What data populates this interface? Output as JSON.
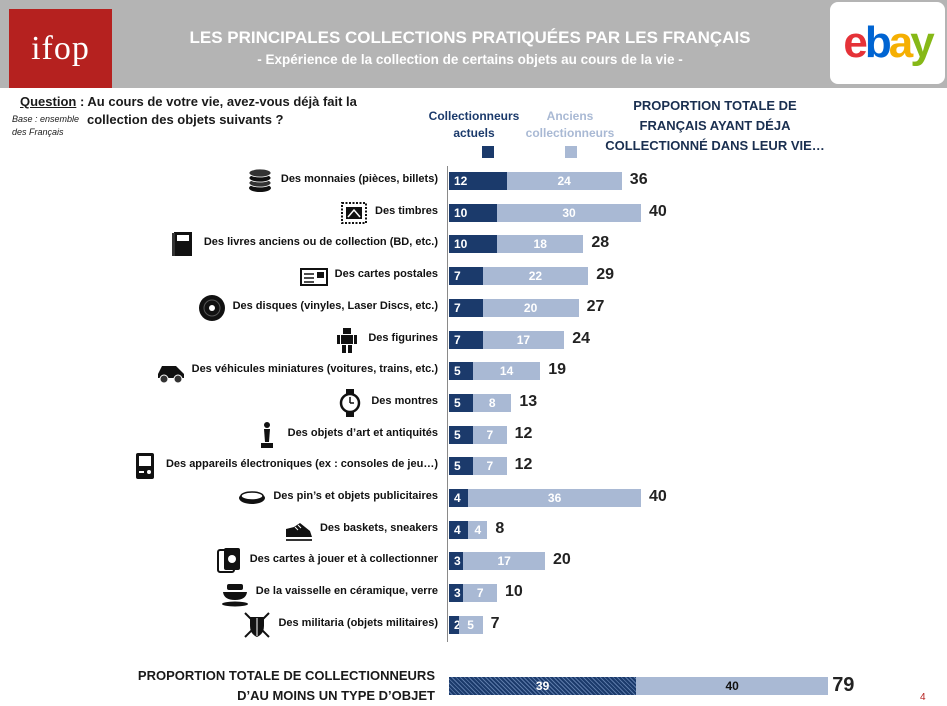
{
  "header": {
    "logo_text": "ifop",
    "title": "LES PRINCIPALES COLLECTIONS PRATIQUÉES PAR LES FRANÇAIS",
    "subtitle": "- Expérience de la collection de certains objets au cours de la vie -",
    "ebay": {
      "e": "e",
      "b": "b",
      "a": "a",
      "y": "y"
    },
    "colors": {
      "banner": "#b4b4b4",
      "ifop_red": "#b5211f"
    }
  },
  "question": {
    "label": "Question",
    "text_line1": " : Au cours de votre vie, avez-vous déjà fait la",
    "text_line2": "collection des objets suivants ?",
    "base": "Base : ensemble des Français"
  },
  "legend": {
    "current": "Collectionneurs actuels",
    "former": "Anciens collectionneurs",
    "total_heading": "PROPORTION TOTALE DE FRANÇAIS AYANT DÉJA COLLECTIONNÉ DANS LEUR VIE…"
  },
  "chart_data": {
    "type": "bar",
    "orientation": "horizontal",
    "stacked": true,
    "colors": {
      "current": "#1b3a6b",
      "former": "#a9b9d4"
    },
    "categories": [
      "Des monnaies (pièces, billets)",
      "Des timbres",
      "Des livres anciens ou de collection (BD, etc.)",
      "Des cartes postales",
      "Des disques (vinyles, Laser Discs, etc.)",
      "Des figurines",
      "Des véhicules miniatures (voitures, trains, etc.)",
      "Des montres",
      "Des objets d’art et antiquités",
      "Des appareils électroniques (ex : consoles de jeu…)",
      "Des pin’s et objets publicitaires",
      "Des baskets, sneakers",
      "Des cartes à jouer et à collectionner",
      "De la vaisselle en céramique, verre",
      "Des militaria (objets militaires)"
    ],
    "icons": [
      "coins-icon",
      "stamp-icon",
      "book-icon",
      "postcard-icon",
      "vinyl-disc-icon",
      "figurine-icon",
      "toy-car-icon",
      "watch-icon",
      "statue-icon",
      "game-console-icon",
      "pin-badge-icon",
      "sneaker-icon",
      "playing-cards-icon",
      "dishes-icon",
      "military-shield-icon"
    ],
    "series": [
      {
        "name": "Collectionneurs actuels",
        "values": [
          12,
          10,
          10,
          7,
          7,
          7,
          5,
          5,
          5,
          5,
          4,
          4,
          3,
          3,
          2
        ]
      },
      {
        "name": "Anciens collectionneurs",
        "values": [
          24,
          30,
          18,
          22,
          20,
          17,
          14,
          8,
          7,
          7,
          36,
          4,
          17,
          7,
          5
        ]
      }
    ],
    "totals": [
      36,
      40,
      28,
      29,
      27,
      24,
      19,
      13,
      12,
      12,
      40,
      8,
      20,
      10,
      7
    ],
    "summary": {
      "label_line1": "PROPORTION TOTALE DE COLLECTIONNEURS",
      "label_line2": "D’AU MOINS UN TYPE D’OBJET",
      "current": 39,
      "former": 40,
      "total": 79
    }
  },
  "page_number": "4"
}
